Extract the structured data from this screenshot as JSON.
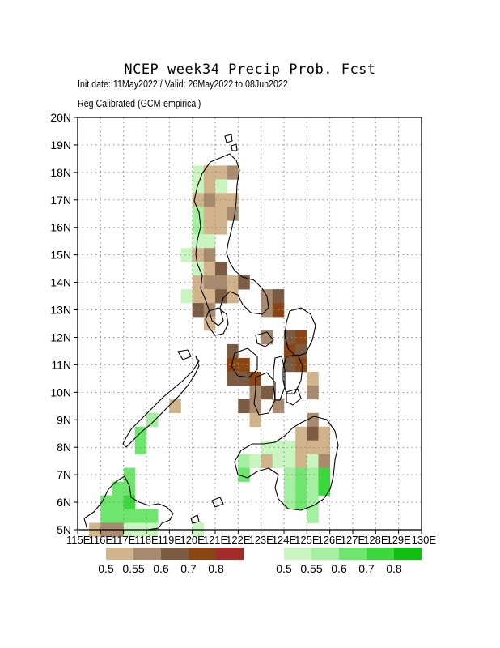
{
  "title": "NCEP  week34  Precip  Prob.  Fcst",
  "subtitle_init": "Init date: 11May2022 / Valid: 26May2022 to 08Jun2022",
  "subtitle_method": "Reg Calibrated (GCM-empirical)",
  "axes": {
    "lat_labels": [
      "20N",
      "19N",
      "18N",
      "17N",
      "16N",
      "15N",
      "14N",
      "13N",
      "12N",
      "11N",
      "10N",
      "9N",
      "8N",
      "7N",
      "6N",
      "5N"
    ],
    "lon_labels": [
      "115E",
      "116E",
      "117E",
      "118E",
      "119E",
      "120E",
      "121E",
      "122E",
      "123E",
      "124E",
      "125E",
      "126E",
      "127E",
      "128E",
      "129E",
      "130E"
    ],
    "lat_range": [
      5,
      20
    ],
    "lon_range": [
      115,
      130
    ],
    "grid": "dotted"
  },
  "legend": {
    "dry": {
      "colors": [
        "#d2b48c",
        "#a88a6f",
        "#7c5b43",
        "#8b4513",
        "#a52a2a"
      ],
      "labels": [
        "0.5",
        "0.55",
        "0.6",
        "0.7",
        "0.8"
      ]
    },
    "wet": {
      "colors": [
        "#c8f5c0",
        "#a5f0a0",
        "#6ee66e",
        "#3ad83a",
        "#10c010"
      ],
      "labels": [
        "0.5",
        "0.55",
        "0.6",
        "0.7",
        "0.8"
      ]
    }
  },
  "chart_data": {
    "type": "heatmap",
    "title": "NCEP  week34  Precip  Prob.  Fcst",
    "x_units": "degrees East longitude",
    "y_units": "degrees North latitude",
    "cell_size_deg": 0.5,
    "categories_legend": {
      "B1": "below normal prob 0.5",
      "B2": "below normal prob 0.55",
      "B3": "below normal prob 0.6",
      "B4": "below normal prob 0.7",
      "A1": "above normal prob 0.5",
      "A2": "above normal prob 0.55",
      "A3": "above normal prob 0.6",
      "A4": "above normal prob 0.7"
    },
    "cells": [
      [
        120.25,
        18.0,
        "A1"
      ],
      [
        120.75,
        18.0,
        "B1"
      ],
      [
        121.25,
        18.0,
        "B1"
      ],
      [
        121.75,
        18.0,
        "B2"
      ],
      [
        120.25,
        17.5,
        "A1"
      ],
      [
        120.75,
        17.5,
        "B1"
      ],
      [
        121.25,
        17.5,
        "A1"
      ],
      [
        120.25,
        17.0,
        "B1"
      ],
      [
        120.75,
        17.0,
        "B2"
      ],
      [
        121.25,
        17.0,
        "B1"
      ],
      [
        121.75,
        17.0,
        "B1"
      ],
      [
        120.25,
        16.5,
        "A2"
      ],
      [
        120.75,
        16.5,
        "B1"
      ],
      [
        121.25,
        16.5,
        "B1"
      ],
      [
        121.75,
        16.5,
        "B2"
      ],
      [
        120.25,
        16.0,
        "A2"
      ],
      [
        120.75,
        16.0,
        "B1"
      ],
      [
        121.25,
        16.0,
        "B1"
      ],
      [
        120.25,
        15.5,
        "A1"
      ],
      [
        120.75,
        15.5,
        "A1"
      ],
      [
        119.75,
        15.0,
        "A1"
      ],
      [
        120.25,
        15.0,
        "B1"
      ],
      [
        120.75,
        15.0,
        "B2"
      ],
      [
        120.25,
        14.5,
        "A1"
      ],
      [
        120.75,
        14.5,
        "B1"
      ],
      [
        121.25,
        14.5,
        "B3"
      ],
      [
        120.25,
        14.0,
        "B1"
      ],
      [
        120.75,
        14.0,
        "B2"
      ],
      [
        121.25,
        14.0,
        "B2"
      ],
      [
        121.75,
        14.0,
        "B1"
      ],
      [
        122.25,
        14.0,
        "B3"
      ],
      [
        119.75,
        13.5,
        "A1"
      ],
      [
        120.25,
        13.5,
        "B1"
      ],
      [
        120.75,
        13.5,
        "B1"
      ],
      [
        121.25,
        13.5,
        "B3"
      ],
      [
        121.75,
        13.5,
        "B1"
      ],
      [
        123.25,
        13.5,
        "B2"
      ],
      [
        123.75,
        13.5,
        "B3"
      ],
      [
        120.25,
        13.0,
        "B3"
      ],
      [
        120.75,
        13.0,
        "B2"
      ],
      [
        123.25,
        13.0,
        "B2"
      ],
      [
        123.75,
        13.0,
        "B4"
      ],
      [
        120.75,
        12.5,
        "B1"
      ],
      [
        123.25,
        12.0,
        "B2"
      ],
      [
        124.25,
        12.0,
        "B3"
      ],
      [
        124.75,
        12.0,
        "B4"
      ],
      [
        121.75,
        11.5,
        "B3"
      ],
      [
        124.25,
        11.5,
        "B4"
      ],
      [
        124.75,
        11.5,
        "B3"
      ],
      [
        121.75,
        11.0,
        "B4"
      ],
      [
        122.25,
        11.0,
        "B4"
      ],
      [
        124.25,
        11.0,
        "B3"
      ],
      [
        124.75,
        11.0,
        "B4"
      ],
      [
        121.75,
        10.5,
        "B3"
      ],
      [
        122.25,
        10.5,
        "B3"
      ],
      [
        122.75,
        10.5,
        "B4"
      ],
      [
        125.25,
        10.5,
        "B1"
      ],
      [
        122.75,
        10.0,
        "B2"
      ],
      [
        123.25,
        10.0,
        "B3"
      ],
      [
        125.25,
        10.0,
        "B2"
      ],
      [
        119.25,
        9.5,
        "B1"
      ],
      [
        122.25,
        9.5,
        "B3"
      ],
      [
        122.75,
        9.5,
        "B2"
      ],
      [
        123.75,
        9.5,
        "B2"
      ],
      [
        118.25,
        9.0,
        "A2"
      ],
      [
        122.75,
        9.0,
        "B1"
      ],
      [
        125.25,
        9.0,
        "B2"
      ],
      [
        117.75,
        8.5,
        "A3"
      ],
      [
        124.75,
        8.5,
        "B1"
      ],
      [
        125.25,
        8.5,
        "B3"
      ],
      [
        125.75,
        8.5,
        "B1"
      ],
      [
        117.75,
        8.0,
        "A3"
      ],
      [
        123.25,
        8.0,
        "A1"
      ],
      [
        123.75,
        8.0,
        "A1"
      ],
      [
        124.25,
        8.0,
        "A1"
      ],
      [
        124.75,
        8.0,
        "B1"
      ],
      [
        125.25,
        8.0,
        "B1"
      ],
      [
        125.75,
        8.0,
        "B1"
      ],
      [
        122.25,
        7.5,
        "A2"
      ],
      [
        122.75,
        7.5,
        "A1"
      ],
      [
        123.25,
        7.5,
        "B1"
      ],
      [
        123.75,
        7.5,
        "A1"
      ],
      [
        124.25,
        7.5,
        "A1"
      ],
      [
        124.75,
        7.5,
        "B1"
      ],
      [
        125.25,
        7.5,
        "A1"
      ],
      [
        125.75,
        7.5,
        "B2"
      ],
      [
        117.25,
        7.0,
        "A3"
      ],
      [
        122.25,
        7.0,
        "A3"
      ],
      [
        124.25,
        7.0,
        "A2"
      ],
      [
        124.75,
        7.0,
        "A3"
      ],
      [
        125.25,
        7.0,
        "A2"
      ],
      [
        125.75,
        7.0,
        "A4"
      ],
      [
        117.25,
        6.5,
        "A3"
      ],
      [
        116.75,
        6.5,
        "A3"
      ],
      [
        124.25,
        6.5,
        "A2"
      ],
      [
        124.75,
        6.5,
        "A3"
      ],
      [
        125.25,
        6.5,
        "A2"
      ],
      [
        125.75,
        6.5,
        "A4"
      ],
      [
        116.25,
        6.0,
        "A3"
      ],
      [
        116.75,
        6.0,
        "A3"
      ],
      [
        117.25,
        6.0,
        "A4"
      ],
      [
        124.25,
        6.0,
        "A2"
      ],
      [
        124.75,
        6.0,
        "A3"
      ],
      [
        125.25,
        6.0,
        "A2"
      ],
      [
        116.25,
        5.5,
        "A3"
      ],
      [
        116.75,
        5.5,
        "A3"
      ],
      [
        117.25,
        5.5,
        "A3"
      ],
      [
        117.75,
        5.5,
        "A3"
      ],
      [
        118.25,
        5.5,
        "A3"
      ],
      [
        125.25,
        5.5,
        "A2"
      ],
      [
        115.75,
        5.0,
        "B1"
      ],
      [
        116.25,
        5.0,
        "B2"
      ],
      [
        116.75,
        5.0,
        "B2"
      ],
      [
        117.25,
        5.0,
        "A1"
      ],
      [
        117.75,
        5.0,
        "A1"
      ],
      [
        118.25,
        5.0,
        "A1"
      ],
      [
        120.25,
        5.0,
        "A1"
      ]
    ]
  }
}
